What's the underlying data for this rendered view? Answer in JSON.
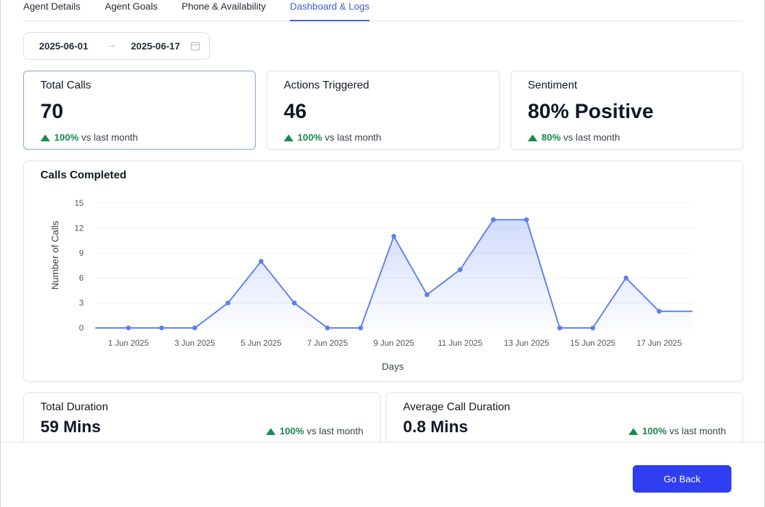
{
  "tabs": [
    {
      "label": "Agent Details"
    },
    {
      "label": "Agent Goals"
    },
    {
      "label": "Phone & Availability"
    },
    {
      "label": "Dashboard & Logs"
    }
  ],
  "active_tab": "Dashboard & Logs",
  "date_range": {
    "start": "2025-06-01",
    "end": "2025-06-17"
  },
  "stats": [
    {
      "title": "Total Calls",
      "value": "70",
      "pct": "100%",
      "suffix": "vs last month"
    },
    {
      "title": "Actions Triggered",
      "value": "46",
      "pct": "100%",
      "suffix": "vs last month"
    },
    {
      "title": "Sentiment",
      "value": "80% Positive",
      "pct": "80%",
      "suffix": "vs last month"
    }
  ],
  "duration_cards": [
    {
      "title": "Total Duration",
      "value": "59 Mins",
      "pct": "100%",
      "suffix": "vs last month"
    },
    {
      "title": "Average Call Duration",
      "value": "0.8 Mins",
      "pct": "100%",
      "suffix": "vs last month"
    }
  ],
  "chart_data": {
    "type": "area",
    "title": "Calls Completed",
    "xlabel": "Days",
    "ylabel": "Number of Calls",
    "ylim": [
      0,
      15
    ],
    "yticks": [
      0,
      3,
      6,
      9,
      12,
      15
    ],
    "x_range": [
      0,
      18
    ],
    "xtick_positions": [
      1,
      3,
      5,
      7,
      9,
      11,
      13,
      15,
      17
    ],
    "xtick_labels": [
      "1 Jun 2025",
      "3 Jun 2025",
      "5 Jun 2025",
      "7 Jun 2025",
      "9 Jun 2025",
      "11 Jun 2025",
      "13 Jun 2025",
      "15 Jun 2025",
      "17 Jun 2025"
    ],
    "series": [
      {
        "x": [
          1,
          2,
          3,
          4,
          5,
          6,
          7,
          8,
          9,
          10,
          11,
          12,
          13,
          14,
          15,
          16,
          17
        ],
        "values": [
          0,
          0,
          0,
          3,
          8,
          3,
          0,
          0,
          11,
          4,
          7,
          13,
          13,
          0,
          0,
          6,
          2
        ]
      }
    ],
    "line_start": {
      "x": 0,
      "value": 0
    },
    "line_end": {
      "x": 18,
      "value": 2
    },
    "color": "#5b7ff2",
    "grid": true
  },
  "colors": {
    "accent": "#3b5bdb",
    "positive": "#168a4c",
    "button": "#2f3ef0"
  },
  "footer": {
    "go_back_label": "Go Back"
  }
}
